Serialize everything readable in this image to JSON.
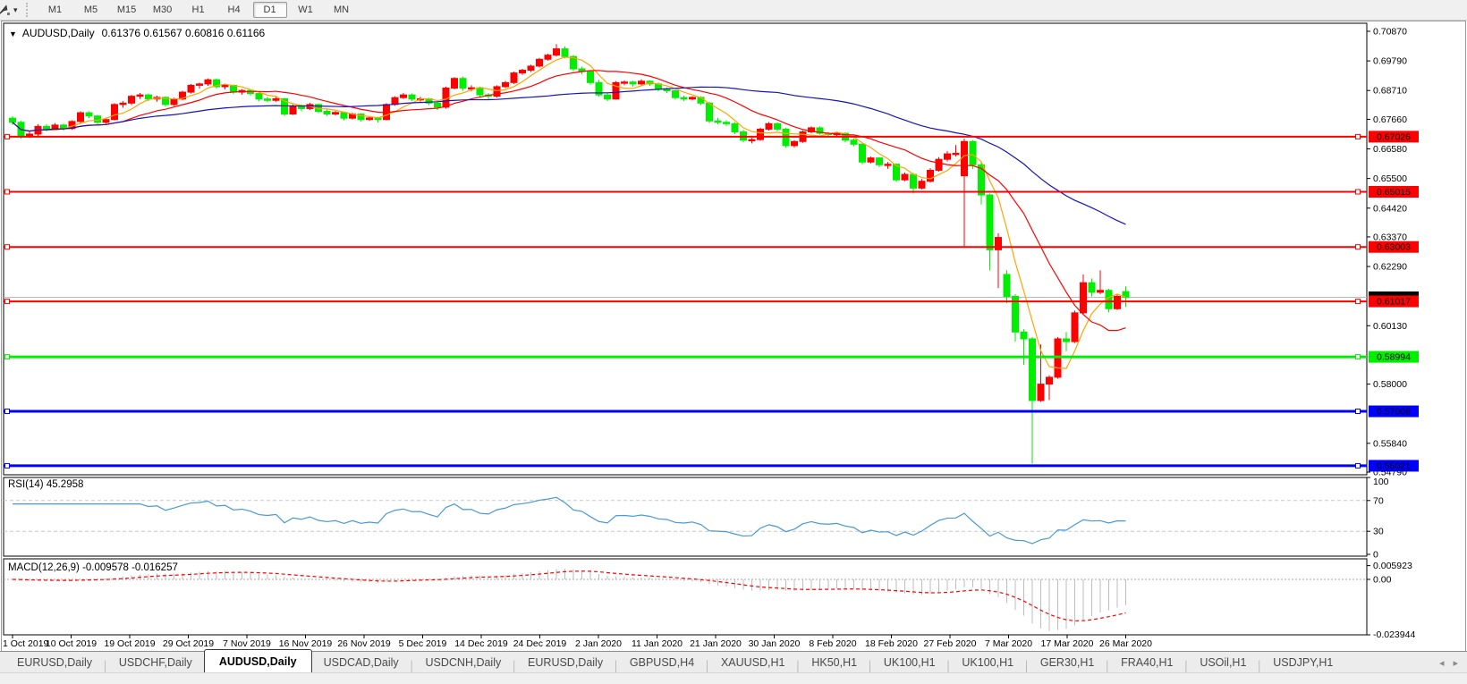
{
  "toolbar": {
    "dropdown_caret": "▾",
    "timeframes": [
      "M1",
      "M5",
      "M15",
      "M30",
      "H1",
      "H4",
      "D1",
      "W1",
      "MN"
    ],
    "selected_timeframe": "D1"
  },
  "chart": {
    "title_caret": "▼",
    "symbol_label": "AUDUSD,Daily",
    "ohlc_text": "0.61376 0.61567 0.60816 0.61166"
  },
  "rsi_panel": {
    "label": "RSI(14) 45.2958"
  },
  "macd_panel": {
    "label": "MACD(12,26,9) -0.009578 -0.016257"
  },
  "tabs": {
    "items": [
      "EURUSD,Daily",
      "USDCHF,Daily",
      "AUDUSD,Daily",
      "USDCAD,Daily",
      "USDCNH,Daily",
      "EURUSD,Daily",
      "GBPUSD,H4",
      "XAUUSD,H1",
      "HK50,H1",
      "UK100,H1",
      "UK100,H1",
      "GER30,H1",
      "FRA40,H1",
      "USOil,H1",
      "USDJPY,H1"
    ],
    "active_index": 2,
    "nav_left": "◂",
    "nav_right": "▸"
  },
  "chart_data": {
    "type": "candlestick",
    "symbol": "AUDUSD",
    "timeframe": "Daily",
    "title": "AUDUSD,Daily",
    "current_bar": {
      "open": 0.61376,
      "high": 0.61567,
      "low": 0.60816,
      "close": 0.61166
    },
    "current_price": 0.61166,
    "ylim": [
      0.5469,
      0.7116
    ],
    "grid": false,
    "y_ticks": [
      "0.70870",
      "0.69790",
      "0.68710",
      "0.67660",
      "0.66580",
      "0.65500",
      "0.64420",
      "0.63370",
      "0.62290",
      "0.60130",
      "0.58000",
      "0.55840",
      "0.54790"
    ],
    "x_ticks": [
      "1 Oct 2019",
      "10 Oct 2019",
      "19 Oct 2019",
      "29 Oct 2019",
      "7 Nov 2019",
      "16 Nov 2019",
      "26 Nov 2019",
      "5 Dec 2019",
      "14 Dec 2019",
      "24 Dec 2019",
      "2 Jan 2020",
      "11 Jan 2020",
      "21 Jan 2020",
      "30 Jan 2020",
      "8 Feb 2020",
      "18 Feb 2020",
      "27 Feb 2020",
      "7 Mar 2020",
      "17 Mar 2020",
      "26 Mar 2020"
    ],
    "colors": {
      "up": "#FF0000",
      "down": "#00EE00",
      "ma_fast": "#FFA500",
      "ma_mid": "#FF0000",
      "ma_slow": "#1414B8",
      "rsi": "#4899D4",
      "rsi_levels": "#C8C8C8",
      "macd_hist": "#BDBDBD",
      "macd_signal": "#FF0000",
      "price_line": "#B8B8B8",
      "current_badge": "#000000"
    },
    "overlays": [
      {
        "name": "MA fast",
        "type": "sma",
        "period": 5,
        "color": "#FFA500"
      },
      {
        "name": "MA mid",
        "type": "sma",
        "period": 13,
        "color": "#FF0000"
      },
      {
        "name": "MA slow",
        "type": "sma",
        "period": 40,
        "color": "#1414B8"
      }
    ],
    "hlines": [
      {
        "price": 0.67026,
        "label": "0.67026",
        "color": "#FF0000",
        "label_text": "#FFFFFF",
        "width": 2
      },
      {
        "price": 0.65015,
        "label": "0.65015",
        "color": "#FF0000",
        "label_text": "#FFFFFF",
        "width": 2
      },
      {
        "price": 0.63003,
        "label": "0.63003",
        "color": "#FF0000",
        "label_text": "#FFFFFF",
        "width": 2
      },
      {
        "price": 0.61017,
        "label": "0.61017",
        "color": "#FF0000",
        "label_text": "#FFFFFF",
        "width": 2
      },
      {
        "price": 0.58994,
        "label": "0.58994",
        "color": "#00EE00",
        "label_text": "#000000",
        "width": 3
      },
      {
        "price": 0.57008,
        "label": "0.57008",
        "color": "#0000FF",
        "label_text": "#FFFFFF",
        "width": 3
      },
      {
        "price": 0.55021,
        "label": "0.55021",
        "color": "#0000FF",
        "label_text": "#FFFFFF",
        "width": 3
      }
    ],
    "rsi": {
      "period": 14,
      "value": 45.2958,
      "levels": [
        70,
        30
      ],
      "axis_labels": [
        "100",
        "70",
        "30",
        "0"
      ]
    },
    "macd": {
      "fast": 12,
      "slow": 26,
      "signal": 9,
      "value": -0.009578,
      "signal_value": -0.016257,
      "axis_labels": [
        "0.005923",
        "0.00",
        "-0.023944"
      ]
    },
    "ohlc": [
      [
        0.677,
        0.6778,
        0.6745,
        0.6755
      ],
      [
        0.6755,
        0.676,
        0.6695,
        0.6702
      ],
      [
        0.6702,
        0.672,
        0.6698,
        0.6712
      ],
      [
        0.6712,
        0.6748,
        0.6705,
        0.674
      ],
      [
        0.674,
        0.6748,
        0.6722,
        0.673
      ],
      [
        0.673,
        0.6752,
        0.6725,
        0.6745
      ],
      [
        0.6745,
        0.675,
        0.6724,
        0.6732
      ],
      [
        0.6732,
        0.6762,
        0.6728,
        0.6758
      ],
      [
        0.6758,
        0.6795,
        0.6752,
        0.679
      ],
      [
        0.679,
        0.6795,
        0.677,
        0.6778
      ],
      [
        0.6778,
        0.6782,
        0.6748,
        0.6755
      ],
      [
        0.6755,
        0.6772,
        0.675,
        0.6765
      ],
      [
        0.6765,
        0.6825,
        0.6762,
        0.682
      ],
      [
        0.682,
        0.6832,
        0.6808,
        0.6825
      ],
      [
        0.6825,
        0.6855,
        0.6818,
        0.685
      ],
      [
        0.685,
        0.6862,
        0.684,
        0.6855
      ],
      [
        0.6855,
        0.686,
        0.6832,
        0.684
      ],
      [
        0.684,
        0.6852,
        0.683,
        0.6846
      ],
      [
        0.6846,
        0.685,
        0.6812,
        0.682
      ],
      [
        0.682,
        0.6845,
        0.6815,
        0.684
      ],
      [
        0.684,
        0.687,
        0.6835,
        0.6865
      ],
      [
        0.6865,
        0.6895,
        0.686,
        0.689
      ],
      [
        0.689,
        0.69,
        0.6878,
        0.6895
      ],
      [
        0.6895,
        0.6915,
        0.6888,
        0.691
      ],
      [
        0.691,
        0.6915,
        0.6878,
        0.6885
      ],
      [
        0.6885,
        0.6896,
        0.6875,
        0.689
      ],
      [
        0.689,
        0.6893,
        0.6858,
        0.6865
      ],
      [
        0.6865,
        0.6876,
        0.6856,
        0.6871
      ],
      [
        0.6871,
        0.6875,
        0.6852,
        0.686
      ],
      [
        0.686,
        0.6865,
        0.6832,
        0.684
      ],
      [
        0.684,
        0.6848,
        0.6828,
        0.6835
      ],
      [
        0.6835,
        0.6848,
        0.683,
        0.6841
      ],
      [
        0.6841,
        0.6844,
        0.6778,
        0.6785
      ],
      [
        0.6785,
        0.682,
        0.6782,
        0.6815
      ],
      [
        0.6815,
        0.682,
        0.6795,
        0.6805
      ],
      [
        0.6805,
        0.6826,
        0.68,
        0.682
      ],
      [
        0.682,
        0.6823,
        0.6788,
        0.6795
      ],
      [
        0.6795,
        0.6802,
        0.6778,
        0.6785
      ],
      [
        0.6785,
        0.6796,
        0.678,
        0.6791
      ],
      [
        0.6791,
        0.6794,
        0.6762,
        0.677
      ],
      [
        0.677,
        0.679,
        0.6765,
        0.6785
      ],
      [
        0.6785,
        0.6788,
        0.6758,
        0.6765
      ],
      [
        0.6765,
        0.6776,
        0.676,
        0.6771
      ],
      [
        0.6771,
        0.6775,
        0.6754,
        0.6765
      ],
      [
        0.6765,
        0.6825,
        0.6762,
        0.682
      ],
      [
        0.682,
        0.685,
        0.6815,
        0.6845
      ],
      [
        0.6845,
        0.6862,
        0.684,
        0.6855
      ],
      [
        0.6855,
        0.686,
        0.6832,
        0.684
      ],
      [
        0.684,
        0.6848,
        0.683,
        0.6841
      ],
      [
        0.6841,
        0.6845,
        0.6818,
        0.6825
      ],
      [
        0.6825,
        0.683,
        0.68,
        0.681
      ],
      [
        0.681,
        0.6885,
        0.6805,
        0.688
      ],
      [
        0.688,
        0.692,
        0.6875,
        0.6915
      ],
      [
        0.6915,
        0.6922,
        0.687,
        0.688
      ],
      [
        0.688,
        0.689,
        0.6868,
        0.6881
      ],
      [
        0.6881,
        0.6885,
        0.6848,
        0.6855
      ],
      [
        0.6855,
        0.6862,
        0.684,
        0.685
      ],
      [
        0.685,
        0.689,
        0.6845,
        0.6885
      ],
      [
        0.6885,
        0.6906,
        0.688,
        0.69
      ],
      [
        0.69,
        0.694,
        0.6895,
        0.6935
      ],
      [
        0.6935,
        0.695,
        0.6928,
        0.6945
      ],
      [
        0.6945,
        0.6965,
        0.6938,
        0.696
      ],
      [
        0.696,
        0.699,
        0.6955,
        0.6985
      ],
      [
        0.6985,
        0.7005,
        0.698,
        0.7
      ],
      [
        0.7,
        0.704,
        0.6995,
        0.7023
      ],
      [
        0.7023,
        0.7032,
        0.6988,
        0.6995
      ],
      [
        0.6995,
        0.7,
        0.6942,
        0.695
      ],
      [
        0.695,
        0.6958,
        0.693,
        0.694
      ],
      [
        0.694,
        0.6944,
        0.6892,
        0.69
      ],
      [
        0.69,
        0.691,
        0.6848,
        0.6855
      ],
      [
        0.6855,
        0.6862,
        0.6832,
        0.684
      ],
      [
        0.684,
        0.6905,
        0.6838,
        0.69
      ],
      [
        0.69,
        0.6908,
        0.689,
        0.6902
      ],
      [
        0.6902,
        0.6906,
        0.6885,
        0.6895
      ],
      [
        0.6895,
        0.6912,
        0.689,
        0.6905
      ],
      [
        0.6905,
        0.6908,
        0.6888,
        0.6895
      ],
      [
        0.6895,
        0.69,
        0.6868,
        0.6875
      ],
      [
        0.6875,
        0.6882,
        0.6862,
        0.687
      ],
      [
        0.687,
        0.6874,
        0.6838,
        0.6845
      ],
      [
        0.6845,
        0.6852,
        0.6832,
        0.684
      ],
      [
        0.684,
        0.685,
        0.6835,
        0.6846
      ],
      [
        0.6846,
        0.685,
        0.6818,
        0.6825
      ],
      [
        0.6825,
        0.683,
        0.6752,
        0.676
      ],
      [
        0.676,
        0.6772,
        0.6748,
        0.6755
      ],
      [
        0.6755,
        0.6762,
        0.6742,
        0.675
      ],
      [
        0.675,
        0.6756,
        0.6712,
        0.672
      ],
      [
        0.672,
        0.6728,
        0.6682,
        0.669
      ],
      [
        0.669,
        0.6698,
        0.6678,
        0.6692
      ],
      [
        0.6692,
        0.6735,
        0.6688,
        0.673
      ],
      [
        0.673,
        0.6756,
        0.6725,
        0.675
      ],
      [
        0.675,
        0.6755,
        0.6722,
        0.673
      ],
      [
        0.673,
        0.6735,
        0.6662,
        0.667
      ],
      [
        0.667,
        0.669,
        0.6662,
        0.6685
      ],
      [
        0.6685,
        0.6725,
        0.668,
        0.672
      ],
      [
        0.672,
        0.674,
        0.6715,
        0.6735
      ],
      [
        0.6735,
        0.674,
        0.671,
        0.6715
      ],
      [
        0.6715,
        0.672,
        0.67,
        0.671
      ],
      [
        0.671,
        0.6718,
        0.6702,
        0.6715
      ],
      [
        0.6715,
        0.6718,
        0.6682,
        0.669
      ],
      [
        0.669,
        0.6696,
        0.6668,
        0.6675
      ],
      [
        0.6675,
        0.6678,
        0.6602,
        0.661
      ],
      [
        0.661,
        0.663,
        0.6605,
        0.6625
      ],
      [
        0.6625,
        0.6628,
        0.6592,
        0.66
      ],
      [
        0.66,
        0.661,
        0.6585,
        0.6602
      ],
      [
        0.6602,
        0.6605,
        0.6538,
        0.6545
      ],
      [
        0.6545,
        0.6572,
        0.654,
        0.6565
      ],
      [
        0.6565,
        0.657,
        0.6495,
        0.6515
      ],
      [
        0.6515,
        0.6548,
        0.651,
        0.654
      ],
      [
        0.654,
        0.6588,
        0.6535,
        0.658
      ],
      [
        0.658,
        0.6628,
        0.6575,
        0.662
      ],
      [
        0.662,
        0.665,
        0.6612,
        0.664
      ],
      [
        0.664,
        0.6672,
        0.663,
        0.6642
      ],
      [
        0.656,
        0.6695,
        0.63,
        0.6685
      ],
      [
        0.6685,
        0.669,
        0.6585,
        0.66
      ],
      [
        0.66,
        0.661,
        0.6455,
        0.649
      ],
      [
        0.649,
        0.6495,
        0.6215,
        0.629
      ],
      [
        0.629,
        0.635,
        0.615,
        0.6335
      ],
      [
        0.62,
        0.6215,
        0.6095,
        0.612
      ],
      [
        0.612,
        0.6128,
        0.5955,
        0.599
      ],
      [
        0.599,
        0.6,
        0.587,
        0.5965
      ],
      [
        0.5965,
        0.5972,
        0.551,
        0.574
      ],
      [
        0.574,
        0.5945,
        0.5735,
        0.58
      ],
      [
        0.58,
        0.5832,
        0.5742,
        0.5825
      ],
      [
        0.5825,
        0.5972,
        0.582,
        0.5965
      ],
      [
        0.5965,
        0.599,
        0.592,
        0.5955
      ],
      [
        0.5955,
        0.6068,
        0.595,
        0.606
      ],
      [
        0.606,
        0.62,
        0.6055,
        0.617
      ],
      [
        0.617,
        0.6185,
        0.612,
        0.6135
      ],
      [
        0.6135,
        0.6215,
        0.6128,
        0.6142
      ],
      [
        0.6142,
        0.6148,
        0.6062,
        0.6075
      ],
      [
        0.6075,
        0.6128,
        0.607,
        0.612
      ],
      [
        0.61376,
        0.61567,
        0.60816,
        0.61166
      ]
    ]
  }
}
